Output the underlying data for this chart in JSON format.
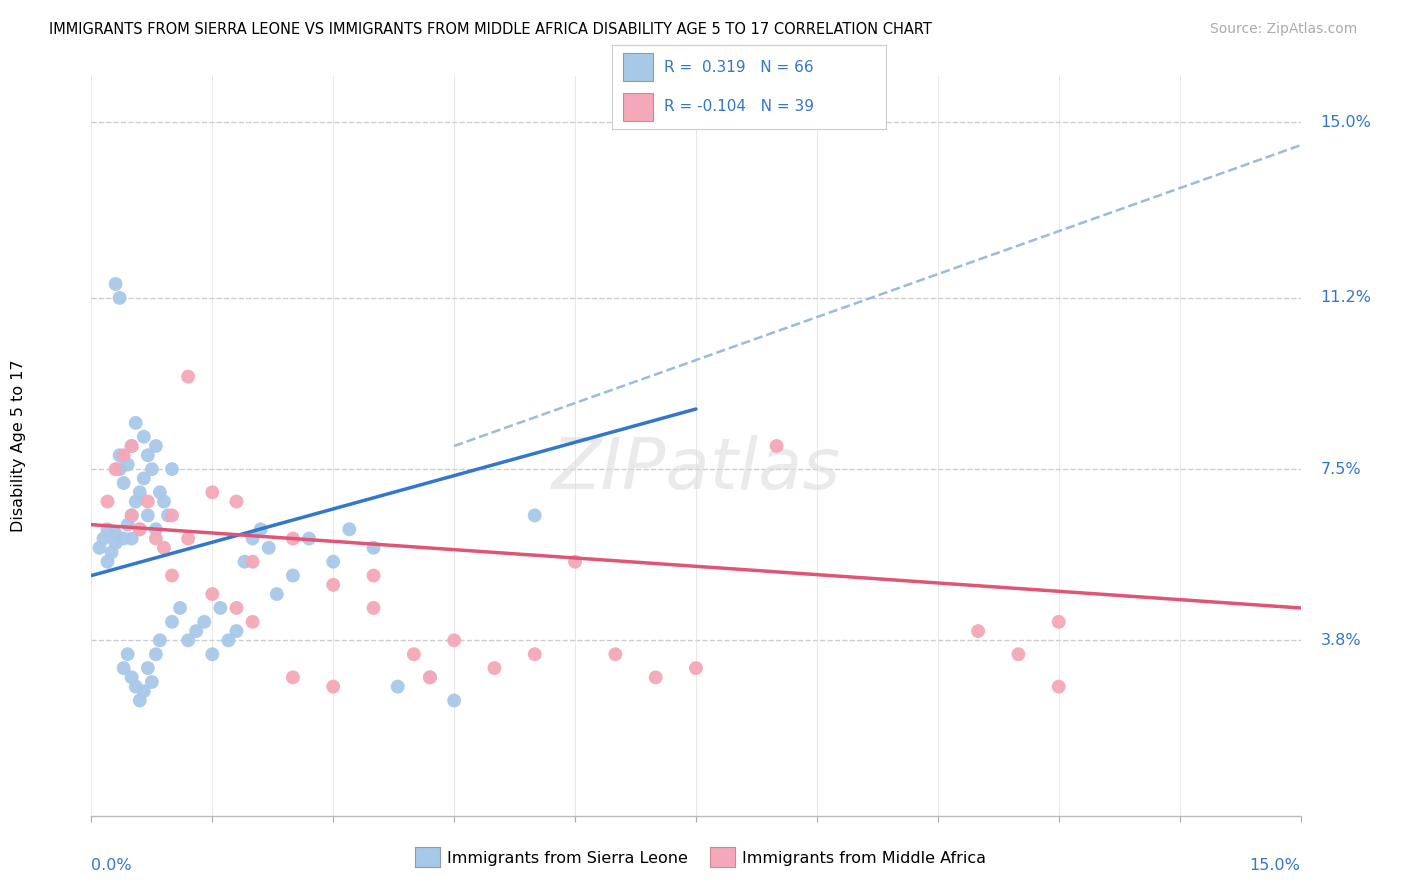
{
  "title": "IMMIGRANTS FROM SIERRA LEONE VS IMMIGRANTS FROM MIDDLE AFRICA DISABILITY AGE 5 TO 17 CORRELATION CHART",
  "source": "Source: ZipAtlas.com",
  "ylabel": "Disability Age 5 to 17",
  "ytick_labels": [
    "3.8%",
    "7.5%",
    "11.2%",
    "15.0%"
  ],
  "ytick_values": [
    3.8,
    7.5,
    11.2,
    15.0
  ],
  "xlim": [
    0.0,
    15.0
  ],
  "ylim": [
    0.0,
    16.0
  ],
  "color_sierra": "#a8c8e8",
  "color_middle": "#f4a8b8",
  "color_sierra_line": "#3377cc",
  "color_middle_line": "#e05575",
  "color_dashed": "#99bbdd",
  "sierra_leone_points_x": [
    0.1,
    0.15,
    0.2,
    0.2,
    0.25,
    0.3,
    0.3,
    0.35,
    0.35,
    0.4,
    0.4,
    0.45,
    0.45,
    0.5,
    0.5,
    0.5,
    0.55,
    0.55,
    0.6,
    0.6,
    0.65,
    0.65,
    0.7,
    0.7,
    0.75,
    0.8,
    0.8,
    0.85,
    0.9,
    0.95,
    1.0,
    1.0,
    1.1,
    1.2,
    1.3,
    1.4,
    1.5,
    1.6,
    1.7,
    1.8,
    1.9,
    2.0,
    2.1,
    2.2,
    2.3,
    2.5,
    2.7,
    3.0,
    3.2,
    3.5,
    3.8,
    4.2,
    4.5,
    5.5,
    0.3,
    0.35,
    0.4,
    0.45,
    0.5,
    0.55,
    0.6,
    0.65,
    0.7,
    0.75,
    0.8,
    0.85
  ],
  "sierra_leone_points_y": [
    5.8,
    6.0,
    5.5,
    6.2,
    5.7,
    6.1,
    5.9,
    7.5,
    7.8,
    7.2,
    6.0,
    7.6,
    6.3,
    6.0,
    8.0,
    6.5,
    8.5,
    6.8,
    7.0,
    6.2,
    8.2,
    7.3,
    7.8,
    6.5,
    7.5,
    8.0,
    6.2,
    7.0,
    6.8,
    6.5,
    7.5,
    4.2,
    4.5,
    3.8,
    4.0,
    4.2,
    3.5,
    4.5,
    3.8,
    4.0,
    5.5,
    6.0,
    6.2,
    5.8,
    4.8,
    5.2,
    6.0,
    5.5,
    6.2,
    5.8,
    2.8,
    3.0,
    2.5,
    6.5,
    11.5,
    11.2,
    3.2,
    3.5,
    3.0,
    2.8,
    2.5,
    2.7,
    3.2,
    2.9,
    3.5,
    3.8
  ],
  "middle_africa_points_x": [
    0.2,
    0.3,
    0.4,
    0.5,
    0.5,
    0.6,
    0.7,
    0.8,
    0.9,
    1.0,
    1.0,
    1.2,
    1.2,
    1.5,
    1.5,
    1.8,
    1.8,
    2.0,
    2.0,
    2.5,
    2.5,
    3.0,
    3.0,
    3.5,
    3.5,
    4.0,
    4.2,
    4.5,
    5.0,
    5.5,
    6.0,
    6.5,
    7.0,
    7.5,
    8.5,
    11.0,
    11.5,
    12.0,
    12.0
  ],
  "middle_africa_points_y": [
    6.8,
    7.5,
    7.8,
    8.0,
    6.5,
    6.2,
    6.8,
    6.0,
    5.8,
    6.5,
    5.2,
    9.5,
    6.0,
    7.0,
    4.8,
    6.8,
    4.5,
    5.5,
    4.2,
    6.0,
    3.0,
    5.0,
    2.8,
    5.2,
    4.5,
    3.5,
    3.0,
    3.8,
    3.2,
    3.5,
    5.5,
    3.5,
    3.0,
    3.2,
    8.0,
    4.0,
    3.5,
    2.8,
    4.2
  ],
  "sierra_line_x0": 0.0,
  "sierra_line_x1": 7.5,
  "sierra_line_y0": 5.2,
  "sierra_line_y1": 8.8,
  "dashed_line_x0": 4.5,
  "dashed_line_x1": 15.0,
  "dashed_line_y0": 8.0,
  "dashed_line_y1": 14.5,
  "middle_line_x0": 0.0,
  "middle_line_x1": 15.0,
  "middle_line_y0": 6.3,
  "middle_line_y1": 4.5,
  "legend_text1": "R =  0.319   N = 66",
  "legend_text2": "R = -0.104   N = 39",
  "bottom_label1": "Immigrants from Sierra Leone",
  "bottom_label2": "Immigrants from Middle Africa"
}
